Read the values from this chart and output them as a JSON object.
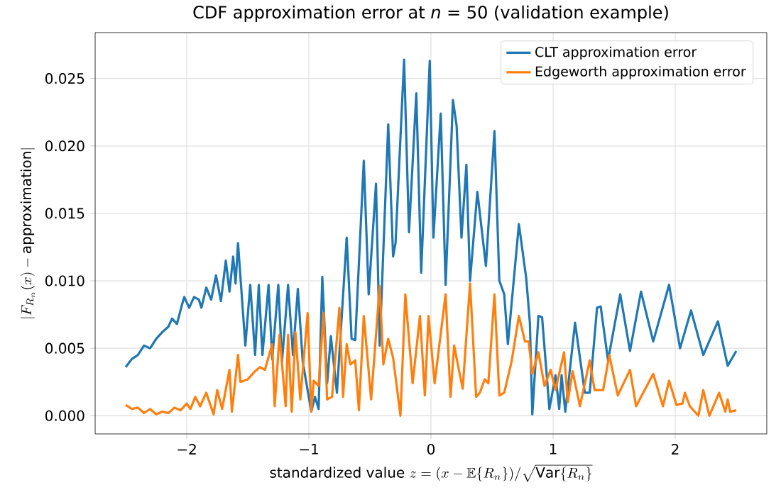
{
  "chart_data": {
    "type": "line",
    "title": "CDF approximation error at *n* = 50 (validation example)",
    "xlabel": "\\text{standardized value } z = (x - \\mathbb{E}\\{R_n\\})/\\sqrt{\\mathrm{Var}\\{R_n\\}}",
    "ylabel": "|F_{R_n}(x) - \\mathrm{approximation}|",
    "xlim": [
      -2.75,
      2.75
    ],
    "ylim": [
      -0.00135,
      0.0284
    ],
    "xticks": [
      {
        "value": -2,
        "label": "−2"
      },
      {
        "value": -1,
        "label": "−1"
      },
      {
        "value": 0,
        "label": "0"
      },
      {
        "value": 1,
        "label": "1"
      },
      {
        "value": 2,
        "label": "2"
      }
    ],
    "yticks": [
      {
        "value": 0,
        "label": "0.000"
      },
      {
        "value": 0.005,
        "label": "0.005"
      },
      {
        "value": 0.01,
        "label": "0.010"
      },
      {
        "value": 0.015,
        "label": "0.015"
      },
      {
        "value": 0.02,
        "label": "0.020"
      },
      {
        "value": 0.025,
        "label": "0.025"
      }
    ],
    "grid": true,
    "legend": "top right",
    "series": [
      {
        "name": "CLT approximation error",
        "color": "#1f77b4",
        "x": [
          -2.5,
          -2.45,
          -2.4,
          -2.35,
          -2.3,
          -2.25,
          -2.2,
          -2.15,
          -2.12,
          -2.08,
          -2.04,
          -2.02,
          -1.98,
          -1.94,
          -1.9,
          -1.88,
          -1.84,
          -1.8,
          -1.76,
          -1.72,
          -1.68,
          -1.65,
          -1.62,
          -1.6,
          -1.58,
          -1.52,
          -1.48,
          -1.44,
          -1.41,
          -1.38,
          -1.33,
          -1.3,
          -1.25,
          -1.22,
          -1.17,
          -1.13,
          -1.09,
          -1.05,
          -0.98,
          -0.95,
          -0.92,
          -0.89,
          -0.85,
          -0.82,
          -0.77,
          -0.69,
          -0.65,
          -0.62,
          -0.55,
          -0.51,
          -0.45,
          -0.42,
          -0.35,
          -0.31,
          -0.29,
          -0.22,
          -0.18,
          -0.12,
          -0.08,
          -0.01,
          0.02,
          0.08,
          0.12,
          0.18,
          0.21,
          0.25,
          0.29,
          0.32,
          0.38,
          0.45,
          0.52,
          0.56,
          0.6,
          0.63,
          0.72,
          0.78,
          0.81,
          0.83,
          0.88,
          0.91,
          0.97,
          1.02,
          1.05,
          1.07,
          1.1,
          1.18,
          1.26,
          1.3,
          1.36,
          1.39,
          1.45,
          1.55,
          1.63,
          1.72,
          1.82,
          1.95,
          2.04,
          2.13,
          2.23,
          2.35,
          2.43,
          2.5
        ],
        "values": [
          0.0036,
          0.0042,
          0.0045,
          0.0052,
          0.005,
          0.0057,
          0.0062,
          0.0066,
          0.0072,
          0.0068,
          0.0082,
          0.0088,
          0.008,
          0.0088,
          0.0086,
          0.008,
          0.0095,
          0.0086,
          0.0104,
          0.0085,
          0.0115,
          0.0092,
          0.0118,
          0.0098,
          0.0128,
          0.0052,
          0.0097,
          0.0045,
          0.0097,
          0.0045,
          0.0097,
          0.0042,
          0.0097,
          0.004,
          0.0097,
          0.0045,
          0.0094,
          0.004,
          0.0003,
          0.0014,
          0.0005,
          0.0103,
          0.0024,
          0.0059,
          0.0017,
          0.0132,
          0.0057,
          0.0056,
          0.0189,
          0.009,
          0.0172,
          0.0052,
          0.0216,
          0.0118,
          0.0128,
          0.0264,
          0.0136,
          0.0239,
          0.0106,
          0.0263,
          0.0132,
          0.0224,
          0.0097,
          0.0234,
          0.0215,
          0.0132,
          0.0186,
          0.01,
          0.0166,
          0.0111,
          0.0211,
          0.01,
          0.009,
          0.0053,
          0.0142,
          0.0102,
          0.0069,
          0.0001,
          0.0074,
          0.0073,
          0.0005,
          0.003,
          0.0005,
          0.003,
          0.0003,
          0.0069,
          0.0017,
          0.0017,
          0.008,
          0.0081,
          0.0041,
          0.009,
          0.0048,
          0.0092,
          0.0055,
          0.0097,
          0.005,
          0.0078,
          0.0045,
          0.007,
          0.0037,
          0.0048
        ]
      },
      {
        "name": "Edgeworth approximation error",
        "color": "#ff7f0e",
        "x": [
          -2.5,
          -2.45,
          -2.4,
          -2.35,
          -2.3,
          -2.25,
          -2.2,
          -2.15,
          -2.1,
          -2.05,
          -2.0,
          -1.97,
          -1.93,
          -1.89,
          -1.84,
          -1.78,
          -1.75,
          -1.71,
          -1.65,
          -1.63,
          -1.58,
          -1.56,
          -1.5,
          -1.44,
          -1.4,
          -1.36,
          -1.3,
          -1.28,
          -1.24,
          -1.19,
          -1.17,
          -1.14,
          -1.11,
          -1.07,
          -1.01,
          -0.98,
          -0.96,
          -0.92,
          -0.88,
          -0.85,
          -0.81,
          -0.75,
          -0.72,
          -0.69,
          -0.66,
          -0.62,
          -0.59,
          -0.55,
          -0.49,
          -0.42,
          -0.39,
          -0.35,
          -0.31,
          -0.25,
          -0.21,
          -0.15,
          -0.09,
          -0.05,
          -0.02,
          0.03,
          0.12,
          0.16,
          0.19,
          0.22,
          0.26,
          0.32,
          0.37,
          0.4,
          0.44,
          0.47,
          0.52,
          0.56,
          0.6,
          0.66,
          0.72,
          0.77,
          0.8,
          0.83,
          0.88,
          0.93,
          0.98,
          1.02,
          1.09,
          1.12,
          1.16,
          1.22,
          1.3,
          1.34,
          1.41,
          1.46,
          1.53,
          1.63,
          1.68,
          1.82,
          1.9,
          1.95,
          2.01,
          2.06,
          2.08,
          2.12,
          2.19,
          2.23,
          2.28,
          2.36,
          2.41,
          2.43,
          2.45,
          2.5
        ],
        "values": [
          0.0008,
          0.0005,
          0.0006,
          0.0002,
          0.0005,
          0.0001,
          0.0003,
          0.0002,
          0.0006,
          0.0004,
          0.0009,
          0.0005,
          0.0014,
          0.0007,
          0.0017,
          0.0001,
          0.0019,
          0.0005,
          0.0034,
          0.0003,
          0.0045,
          0.0025,
          0.0027,
          0.0033,
          0.0036,
          0.0034,
          0.0053,
          0.0007,
          0.006,
          0.0007,
          0.006,
          0.0003,
          0.0062,
          0.0012,
          0.0076,
          0.0003,
          0.0026,
          0.0022,
          0.0076,
          0.0012,
          0.0014,
          0.008,
          0.0014,
          0.0053,
          0.0038,
          0.0041,
          0.0004,
          0.0074,
          0.0012,
          0.0096,
          0.0038,
          0.0057,
          0.0043,
          0.0,
          0.009,
          0.0024,
          0.0074,
          0.0015,
          0.0074,
          0.0024,
          0.009,
          0.0014,
          0.0052,
          0.0038,
          0.002,
          0.0098,
          0.0014,
          0.0017,
          0.0027,
          0.0024,
          0.009,
          0.0015,
          0.0017,
          0.004,
          0.0074,
          0.0055,
          0.0055,
          0.0031,
          0.0047,
          0.0022,
          0.0034,
          0.0019,
          0.0047,
          0.001,
          0.0033,
          0.0007,
          0.0041,
          0.0019,
          0.0019,
          0.0045,
          0.0015,
          0.0034,
          0.0007,
          0.0031,
          0.0007,
          0.0026,
          0.0008,
          0.0009,
          0.0017,
          0.0007,
          0.0,
          0.0019,
          0.0,
          0.0017,
          0.0003,
          0.0012,
          0.0003,
          0.0004
        ]
      }
    ]
  }
}
